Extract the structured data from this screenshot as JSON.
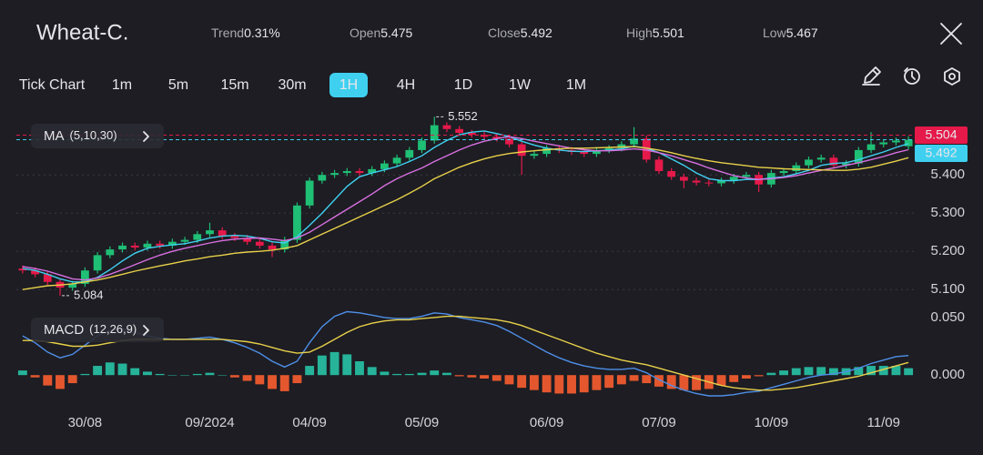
{
  "header": {
    "symbol": "Wheat-C.",
    "stats": [
      {
        "label": "Trend",
        "value": "0.31%"
      },
      {
        "label": "Open",
        "value": "5.475"
      },
      {
        "label": "Close",
        "value": "5.492"
      },
      {
        "label": "High",
        "value": "5.501"
      },
      {
        "label": "Low",
        "value": "5.467"
      }
    ]
  },
  "toolbar": {
    "tabs": [
      "Tick Chart",
      "1m",
      "5m",
      "15m",
      "30m",
      "1H",
      "4H",
      "1D",
      "1W",
      "1M"
    ],
    "active_index": 5
  },
  "chart_data": [
    {
      "type": "candlestick",
      "indicator": {
        "name": "MA",
        "params": "(5,10,30)"
      },
      "categories": [
        null,
        null,
        null,
        null,
        null,
        "30/08",
        null,
        null,
        null,
        null,
        null,
        null,
        null,
        null,
        null,
        "09/2024",
        null,
        null,
        null,
        null,
        null,
        null,
        null,
        "04/09",
        null,
        null,
        null,
        null,
        null,
        null,
        null,
        null,
        "05/09",
        null,
        null,
        null,
        null,
        null,
        null,
        null,
        null,
        null,
        "06/09",
        null,
        null,
        null,
        null,
        null,
        null,
        null,
        null,
        "07/09",
        null,
        null,
        null,
        null,
        null,
        null,
        null,
        null,
        "10/09",
        null,
        null,
        null,
        null,
        null,
        null,
        null,
        null,
        "11/09",
        null,
        null
      ],
      "open": [
        5.155,
        5.15,
        5.14,
        5.12,
        5.105,
        5.115,
        5.15,
        5.19,
        5.205,
        5.215,
        5.21,
        5.22,
        5.215,
        5.225,
        5.23,
        5.245,
        5.255,
        5.24,
        5.235,
        5.225,
        5.215,
        5.205,
        5.23,
        5.32,
        5.385,
        5.4,
        5.405,
        5.41,
        5.405,
        5.415,
        5.43,
        5.445,
        5.465,
        5.49,
        5.53,
        5.52,
        5.51,
        5.505,
        5.5,
        5.495,
        5.48,
        5.45,
        5.455,
        5.47,
        5.465,
        5.46,
        5.455,
        5.465,
        5.47,
        5.48,
        5.495,
        5.44,
        5.41,
        5.395,
        5.385,
        5.38,
        5.378,
        5.385,
        5.395,
        5.4,
        5.375,
        5.405,
        5.41,
        5.425,
        5.44,
        5.445,
        5.425,
        5.43,
        5.465,
        5.48,
        5.485,
        5.475
      ],
      "high": [
        5.163,
        5.158,
        5.148,
        5.128,
        5.123,
        5.158,
        5.198,
        5.213,
        5.223,
        5.223,
        5.228,
        5.228,
        5.233,
        5.238,
        5.253,
        5.275,
        5.263,
        5.248,
        5.243,
        5.233,
        5.223,
        5.238,
        5.328,
        5.393,
        5.408,
        5.413,
        5.418,
        5.418,
        5.423,
        5.438,
        5.453,
        5.473,
        5.498,
        5.552,
        5.538,
        5.528,
        5.518,
        5.513,
        5.508,
        5.503,
        5.488,
        5.463,
        5.478,
        5.478,
        5.473,
        5.468,
        5.473,
        5.478,
        5.488,
        5.525,
        5.503,
        5.448,
        5.418,
        5.403,
        5.393,
        5.388,
        5.393,
        5.403,
        5.408,
        5.408,
        5.413,
        5.418,
        5.433,
        5.448,
        5.453,
        5.453,
        5.438,
        5.473,
        5.512,
        5.493,
        5.498,
        5.501
      ],
      "low": [
        5.142,
        5.132,
        5.112,
        5.084,
        5.097,
        5.107,
        5.142,
        5.182,
        5.197,
        5.202,
        5.202,
        5.207,
        5.207,
        5.217,
        5.222,
        5.237,
        5.232,
        5.227,
        5.217,
        5.207,
        5.185,
        5.197,
        5.222,
        5.312,
        5.377,
        5.392,
        5.397,
        5.397,
        5.397,
        5.407,
        5.422,
        5.437,
        5.457,
        5.482,
        5.512,
        5.502,
        5.497,
        5.492,
        5.487,
        5.472,
        5.4,
        5.442,
        5.447,
        5.457,
        5.452,
        5.447,
        5.447,
        5.457,
        5.462,
        5.472,
        5.432,
        5.402,
        5.387,
        5.365,
        5.372,
        5.37,
        5.37,
        5.377,
        5.387,
        5.355,
        5.367,
        5.397,
        5.402,
        5.417,
        5.432,
        5.417,
        5.417,
        5.422,
        5.457,
        5.472,
        5.477,
        5.467
      ],
      "close": [
        5.15,
        5.14,
        5.12,
        5.105,
        5.115,
        5.15,
        5.19,
        5.205,
        5.215,
        5.21,
        5.22,
        5.215,
        5.225,
        5.23,
        5.245,
        5.255,
        5.24,
        5.235,
        5.225,
        5.215,
        5.205,
        5.23,
        5.32,
        5.385,
        5.4,
        5.405,
        5.41,
        5.405,
        5.415,
        5.43,
        5.445,
        5.465,
        5.49,
        5.53,
        5.52,
        5.51,
        5.505,
        5.5,
        5.495,
        5.48,
        5.45,
        5.455,
        5.47,
        5.465,
        5.46,
        5.455,
        5.465,
        5.47,
        5.48,
        5.495,
        5.44,
        5.41,
        5.395,
        5.385,
        5.38,
        5.378,
        5.385,
        5.395,
        5.4,
        5.375,
        5.405,
        5.41,
        5.425,
        5.44,
        5.445,
        5.425,
        5.43,
        5.465,
        5.48,
        5.485,
        5.49,
        5.492
      ],
      "up_color": "#1fbf75",
      "down_color": "#e5194a",
      "series": [
        {
          "color": "#3fd0f0",
          "values": [
            5.155,
            5.15,
            5.14,
            5.128,
            5.12,
            5.12,
            5.132,
            5.152,
            5.175,
            5.195,
            5.208,
            5.213,
            5.217,
            5.22,
            5.227,
            5.235,
            5.24,
            5.242,
            5.24,
            5.234,
            5.225,
            5.222,
            5.238,
            5.268,
            5.3,
            5.335,
            5.37,
            5.395,
            5.405,
            5.413,
            5.422,
            5.435,
            5.45,
            5.472,
            5.49,
            5.505,
            5.512,
            5.515,
            5.508,
            5.5,
            5.488,
            5.478,
            5.47,
            5.465,
            5.462,
            5.461,
            5.463,
            5.465,
            5.468,
            5.475,
            5.47,
            5.458,
            5.442,
            5.425,
            5.405,
            5.39,
            5.385,
            5.385,
            5.388,
            5.388,
            5.392,
            5.395,
            5.403,
            5.412,
            5.425,
            5.43,
            5.432,
            5.44,
            5.45,
            5.46,
            5.472,
            5.482
          ]
        },
        {
          "color": "#d86fe0",
          "values": [
            5.16,
            5.155,
            5.148,
            5.138,
            5.128,
            5.125,
            5.13,
            5.14,
            5.152,
            5.165,
            5.178,
            5.19,
            5.2,
            5.208,
            5.215,
            5.222,
            5.228,
            5.232,
            5.234,
            5.235,
            5.232,
            5.228,
            5.235,
            5.25,
            5.27,
            5.29,
            5.31,
            5.33,
            5.35,
            5.372,
            5.39,
            5.405,
            5.418,
            5.435,
            5.45,
            5.465,
            5.478,
            5.488,
            5.495,
            5.5,
            5.495,
            5.488,
            5.482,
            5.476,
            5.47,
            5.466,
            5.463,
            5.463,
            5.465,
            5.468,
            5.465,
            5.458,
            5.45,
            5.44,
            5.43,
            5.418,
            5.408,
            5.398,
            5.392,
            5.388,
            5.39,
            5.393,
            5.398,
            5.405,
            5.412,
            5.418,
            5.425,
            5.432,
            5.44,
            5.448,
            5.458,
            5.466
          ]
        },
        {
          "color": "#e8d04a",
          "values": [
            5.1,
            5.105,
            5.11,
            5.112,
            5.115,
            5.12,
            5.125,
            5.132,
            5.14,
            5.148,
            5.155,
            5.162,
            5.168,
            5.175,
            5.18,
            5.186,
            5.19,
            5.195,
            5.198,
            5.2,
            5.203,
            5.208,
            5.215,
            5.23,
            5.245,
            5.26,
            5.275,
            5.29,
            5.305,
            5.32,
            5.335,
            5.352,
            5.37,
            5.39,
            5.405,
            5.42,
            5.432,
            5.442,
            5.45,
            5.456,
            5.46,
            5.463,
            5.466,
            5.468,
            5.47,
            5.47,
            5.471,
            5.472,
            5.473,
            5.474,
            5.47,
            5.465,
            5.458,
            5.45,
            5.443,
            5.437,
            5.432,
            5.428,
            5.424,
            5.42,
            5.418,
            5.416,
            5.415,
            5.414,
            5.413,
            5.412,
            5.412,
            5.415,
            5.42,
            5.428,
            5.436,
            5.445
          ]
        }
      ],
      "annotations": [
        {
          "value": 5.552,
          "label": "5.552"
        },
        {
          "value": 5.084,
          "label": "5.084"
        }
      ],
      "price_lines": [
        {
          "value": 5.504,
          "label": "5.504",
          "color": "#e5194a"
        },
        {
          "value": 5.492,
          "label": "5.492",
          "color": "#3fd0f0"
        }
      ],
      "ylim": [
        5.06,
        5.56
      ],
      "yticks": [
        {
          "value": 5.1,
          "label": "5.100"
        },
        {
          "value": 5.2,
          "label": "5.200"
        },
        {
          "value": 5.3,
          "label": "5.300"
        },
        {
          "value": 5.4,
          "label": "5.400"
        }
      ],
      "grid": true
    },
    {
      "type": "macd",
      "indicator": {
        "name": "MACD",
        "params": "(12,26,9)"
      },
      "histogram": {
        "up_color": "#26b39a",
        "down_color": "#e4572e",
        "values": [
          0.004,
          -0.002,
          -0.009,
          -0.012,
          -0.007,
          0.001,
          0.008,
          0.011,
          0.01,
          0.006,
          0.003,
          0.001,
          0,
          0,
          0.001,
          0.002,
          0,
          -0.002,
          -0.005,
          -0.008,
          -0.012,
          -0.014,
          -0.007,
          0.008,
          0.017,
          0.02,
          0.018,
          0.012,
          0.007,
          0.003,
          0.001,
          0.001,
          0.002,
          0.004,
          0.002,
          -0.001,
          -0.002,
          -0.003,
          -0.005,
          -0.008,
          -0.011,
          -0.013,
          -0.015,
          -0.016,
          -0.016,
          -0.015,
          -0.013,
          -0.011,
          -0.008,
          -0.005,
          -0.007,
          -0.01,
          -0.012,
          -0.013,
          -0.013,
          -0.012,
          -0.009,
          -0.006,
          -0.003,
          -0.001,
          0.002,
          0.004,
          0.006,
          0.007,
          0.007,
          0.006,
          0.006,
          0.007,
          0.008,
          0.008,
          0.008,
          0.006
        ]
      },
      "series": [
        {
          "color": "#4f8fe8",
          "values": [
            0.034,
            0.028,
            0.02,
            0.015,
            0.018,
            0.026,
            0.034,
            0.039,
            0.04,
            0.037,
            0.034,
            0.032,
            0.031,
            0.031,
            0.032,
            0.033,
            0.031,
            0.028,
            0.024,
            0.019,
            0.012,
            0.007,
            0.012,
            0.028,
            0.042,
            0.051,
            0.055,
            0.054,
            0.052,
            0.05,
            0.049,
            0.049,
            0.051,
            0.054,
            0.053,
            0.05,
            0.048,
            0.046,
            0.043,
            0.038,
            0.032,
            0.026,
            0.02,
            0.015,
            0.011,
            0.008,
            0.006,
            0.005,
            0.005,
            0.006,
            0.002,
            -0.004,
            -0.009,
            -0.013,
            -0.016,
            -0.018,
            -0.018,
            -0.017,
            -0.015,
            -0.014,
            -0.011,
            -0.008,
            -0.005,
            -0.002,
            0,
            0.001,
            0.003,
            0.006,
            0.01,
            0.013,
            0.016,
            0.017
          ]
        },
        {
          "color": "#e8d04a",
          "values": [
            0.03,
            0.03,
            0.029,
            0.027,
            0.025,
            0.025,
            0.026,
            0.028,
            0.03,
            0.031,
            0.031,
            0.031,
            0.031,
            0.031,
            0.031,
            0.031,
            0.031,
            0.03,
            0.029,
            0.027,
            0.024,
            0.021,
            0.019,
            0.02,
            0.025,
            0.031,
            0.037,
            0.042,
            0.045,
            0.047,
            0.048,
            0.048,
            0.049,
            0.05,
            0.051,
            0.051,
            0.05,
            0.049,
            0.048,
            0.046,
            0.043,
            0.039,
            0.035,
            0.031,
            0.027,
            0.023,
            0.019,
            0.016,
            0.013,
            0.011,
            0.009,
            0.006,
            0.003,
            0,
            -0.003,
            -0.006,
            -0.009,
            -0.011,
            -0.012,
            -0.013,
            -0.013,
            -0.012,
            -0.011,
            -0.009,
            -0.007,
            -0.005,
            -0.003,
            -0.001,
            0.002,
            0.005,
            0.008,
            0.011
          ]
        }
      ],
      "ylim": [
        -0.018,
        0.057
      ],
      "yticks": [
        {
          "value": 0,
          "label": "0.000"
        },
        {
          "value": 0.05,
          "label": "0.050"
        }
      ],
      "grid": false
    }
  ]
}
